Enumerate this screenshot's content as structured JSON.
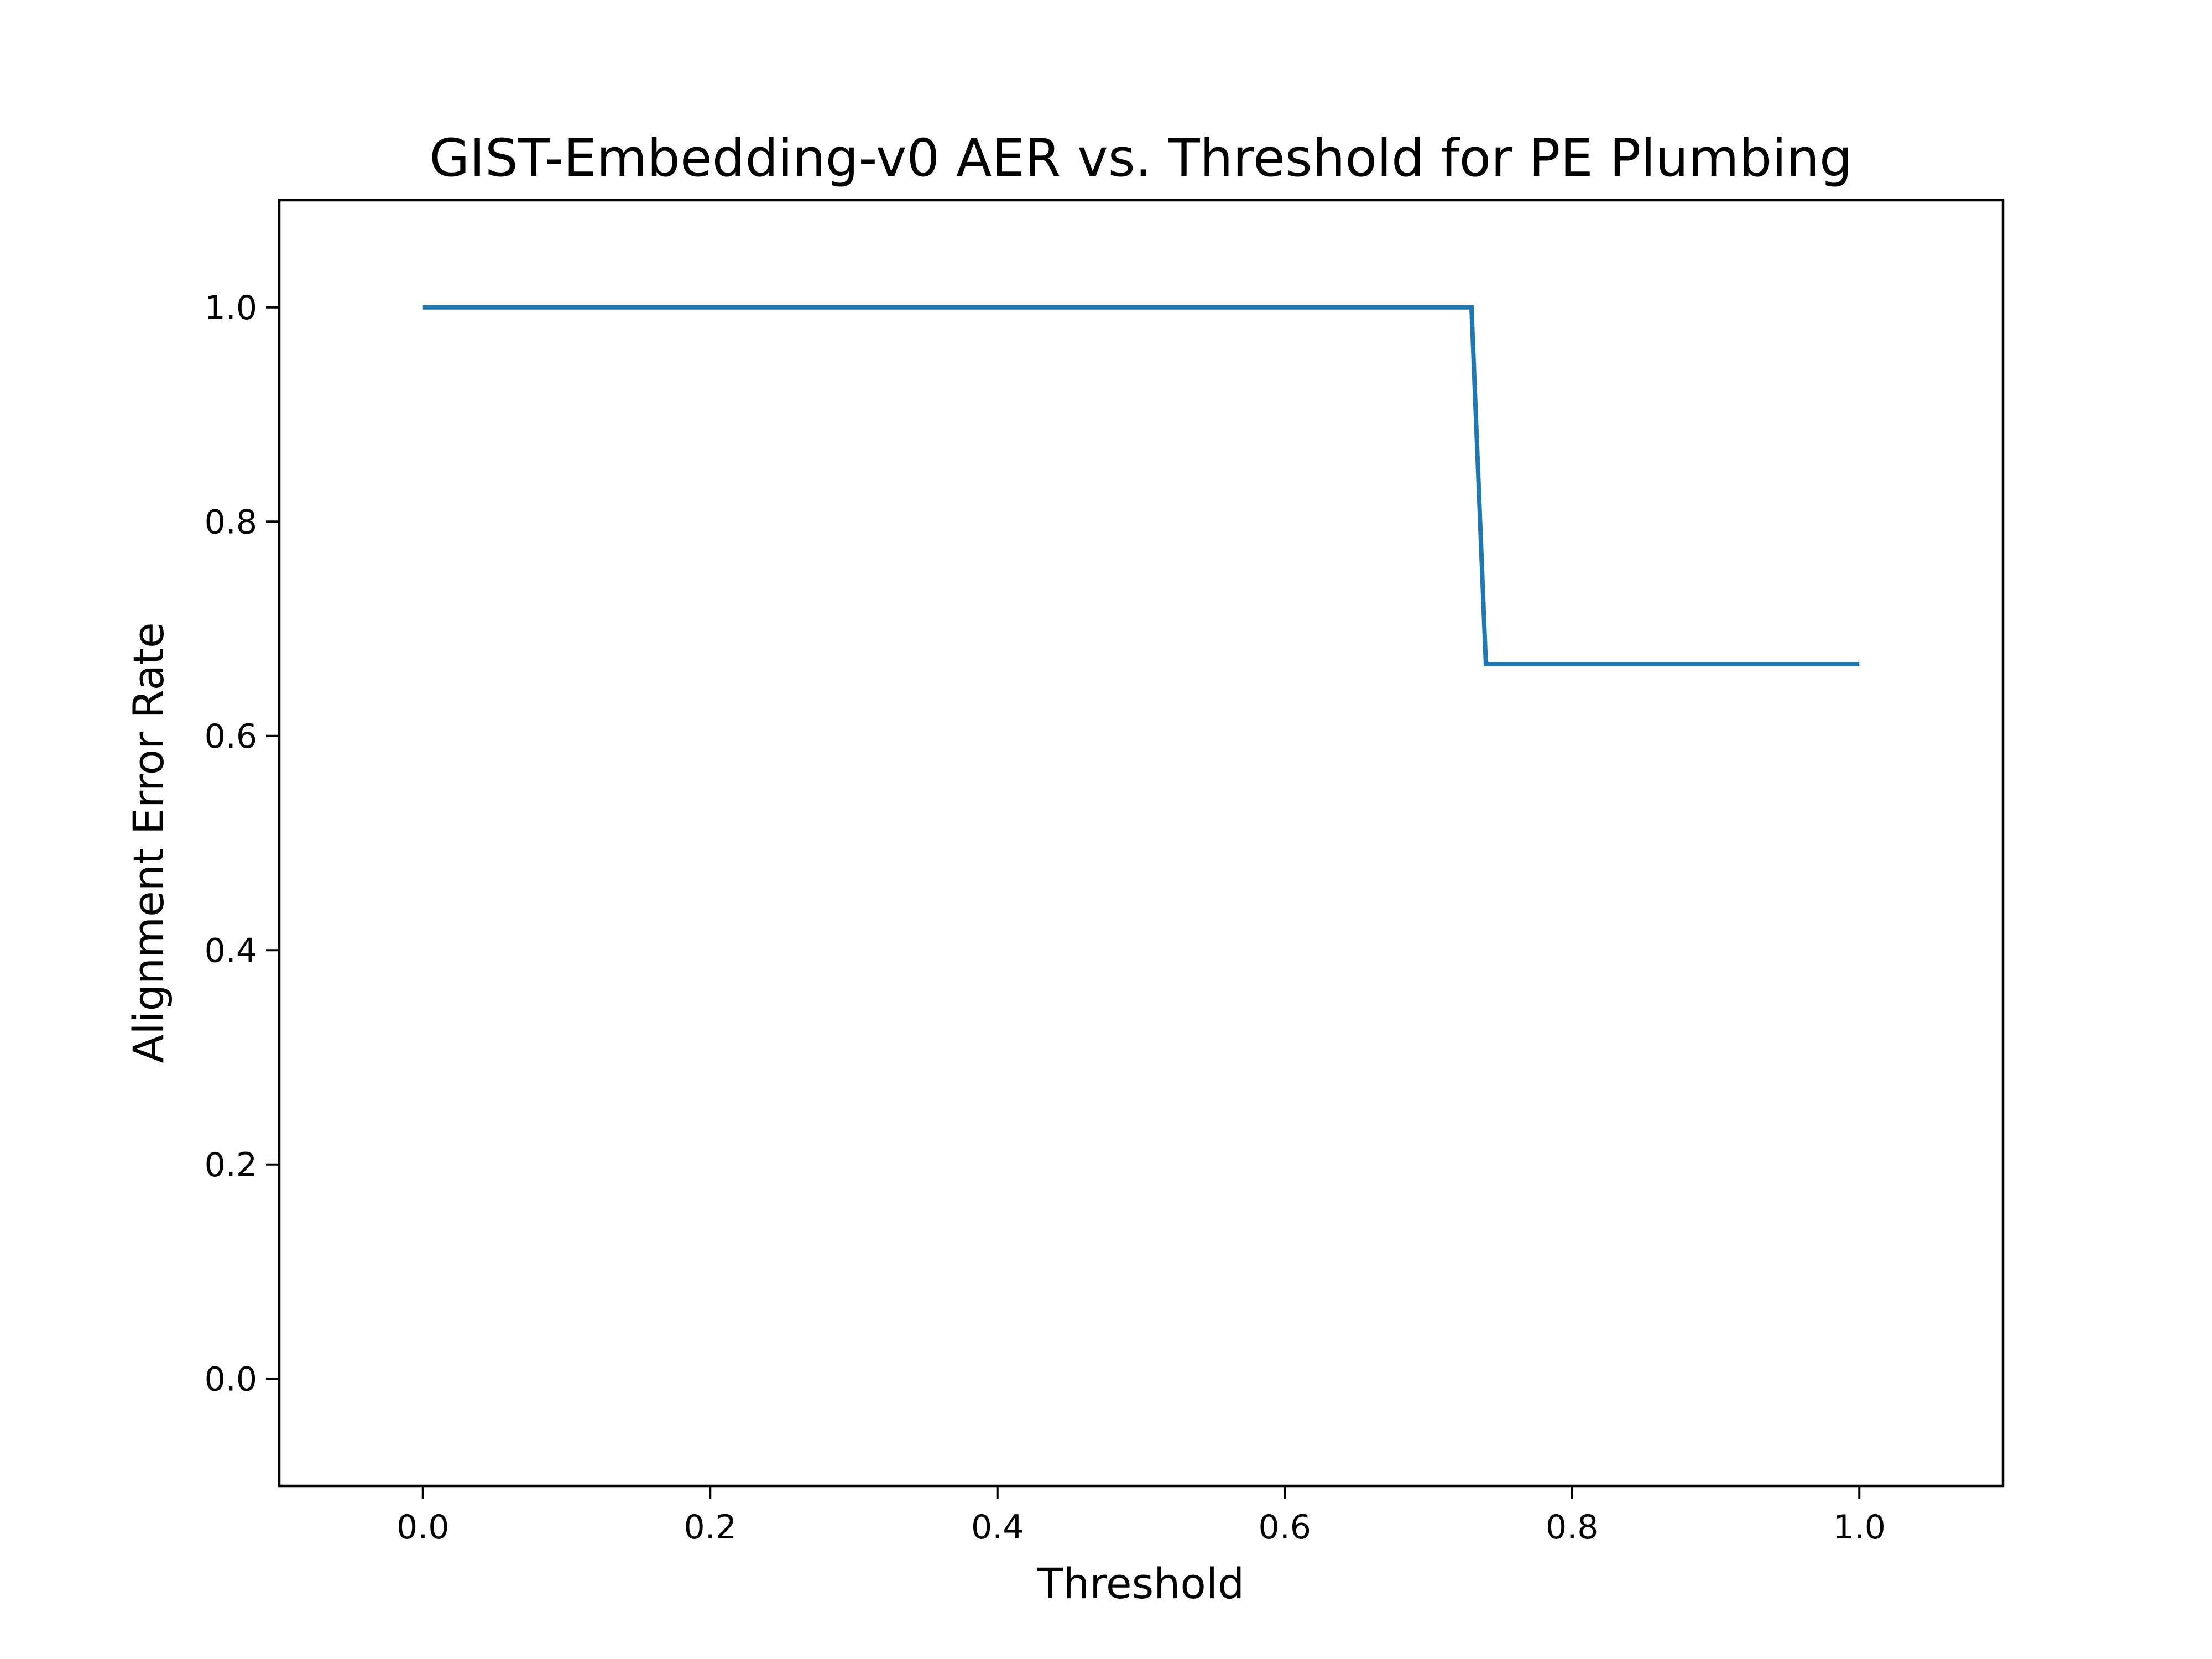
{
  "chart_data": {
    "type": "line",
    "title": "GIST-Embedding-v0 AER vs. Threshold for PE Plumbing",
    "xlabel": "Threshold",
    "ylabel": "Alignment Error Rate",
    "xlim": [
      -0.1,
      1.1
    ],
    "ylim": [
      -0.1,
      1.1
    ],
    "xticks": [
      0.0,
      0.2,
      0.4,
      0.6,
      0.8,
      1.0
    ],
    "yticks": [
      0.0,
      0.2,
      0.4,
      0.6,
      0.8,
      1.0
    ],
    "xtick_labels": [
      "0.0",
      "0.2",
      "0.4",
      "0.6",
      "0.8",
      "1.0"
    ],
    "ytick_labels": [
      "0.0",
      "0.2",
      "0.4",
      "0.6",
      "0.8",
      "1.0"
    ],
    "grid": false,
    "series": [
      {
        "color": "#1f77b4",
        "x": [
          0.0,
          0.73,
          0.74,
          1.0
        ],
        "y": [
          1.0,
          1.0,
          0.667,
          0.667
        ]
      }
    ]
  }
}
